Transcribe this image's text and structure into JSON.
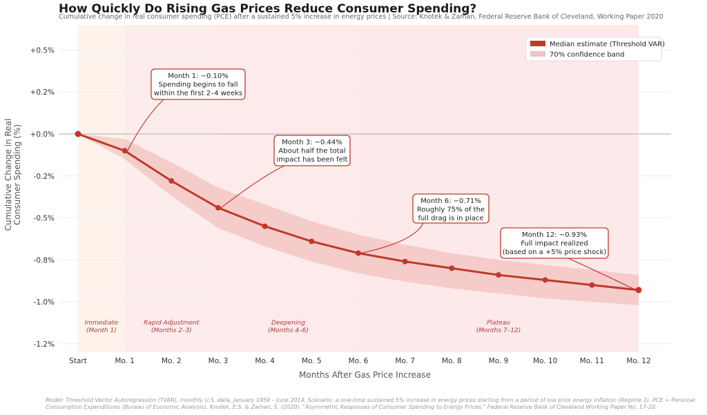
{
  "chart_data": {
    "type": "line",
    "title": "How Quickly Do Rising Gas Prices Reduce Consumer Spending?",
    "subtitle": "Cumulative change in real consumer spending (PCE) after a sustained 5% increase in energy prices  |  Source: Knotek & Zaman, Federal Reserve Bank of Cleveland, Working Paper 2020",
    "xlabel": "Months After Gas Price Increase",
    "ylabel": "Cumulative Change in Real\nConsumer Spending (%)",
    "categories": [
      "Start",
      "Mo. 1",
      "Mo. 2",
      "Mo. 3",
      "Mo. 4",
      "Mo. 5",
      "Mo. 6",
      "Mo. 7",
      "Mo. 8",
      "Mo. 9",
      "Mo. 10",
      "Mo. 11",
      "Mo. 12"
    ],
    "ylim": [
      -1.3,
      0.65
    ],
    "y_ticks": [
      0.5,
      0.25,
      0,
      -0.25,
      -0.5,
      -0.75,
      -1.0,
      -1.25
    ],
    "y_tick_labels": [
      "+0.5%",
      "+0.2%",
      "+0.0%",
      "-0.2%",
      "-0.5%",
      "-0.8%",
      "-1.0%",
      "-1.2%"
    ],
    "grid": true,
    "legend_position": "top-right",
    "series": [
      {
        "name": "Median estimate (Threshold VAR)",
        "color": "#c0392b",
        "values": [
          0,
          -0.1,
          -0.28,
          -0.44,
          -0.55,
          -0.64,
          -0.71,
          -0.76,
          -0.8,
          -0.84,
          -0.87,
          -0.9,
          -0.93
        ]
      },
      {
        "name": "70% confidence band",
        "color": "#f2c4c0",
        "upper": [
          0,
          -0.03,
          -0.17,
          -0.32,
          -0.42,
          -0.52,
          -0.6,
          -0.66,
          -0.71,
          -0.75,
          -0.78,
          -0.81,
          -0.84
        ],
        "lower": [
          0,
          -0.15,
          -0.37,
          -0.56,
          -0.67,
          -0.76,
          -0.83,
          -0.88,
          -0.92,
          -0.95,
          -0.98,
          -1.0,
          -1.02
        ]
      }
    ],
    "phases": [
      {
        "label": "Immediate",
        "sub": "(Month 1)",
        "from": 0,
        "to": 1,
        "color": "#fdf3ea"
      },
      {
        "label": "Rapid Adjustment",
        "sub": "(Months 2–3)",
        "from": 1,
        "to": 3,
        "color": "#fcecec"
      },
      {
        "label": "Deepening",
        "sub": "(Months 4–6)",
        "from": 3,
        "to": 6,
        "color": "#fdeaea"
      },
      {
        "label": "Plateau",
        "sub": "(Months 7–12)",
        "from": 6,
        "to": 12,
        "color": "#fde9e9"
      }
    ],
    "annotations": [
      {
        "target": 1,
        "lines": [
          "Month 1:  −0.10%",
          "Spending begins to fall",
          "within the first 2–4 weeks"
        ]
      },
      {
        "target": 3,
        "lines": [
          "Month 3:  −0.44%",
          "About half the total",
          "impact has been felt"
        ]
      },
      {
        "target": 6,
        "lines": [
          "Month 6:  −0.71%",
          "Roughly 75% of the",
          "full drag is in place"
        ]
      },
      {
        "target": 12,
        "lines": [
          "Month 12:  −0.93%",
          "Full impact realized",
          "(based on a +5% price shock)"
        ]
      }
    ]
  },
  "footnote": "Model: Threshold Vector Autoregression (TVAR), monthly U.S. data, January 1959 – June 2014. Scenario: a one-time sustained 5% increase in energy prices starting from a period of low prior energy inflation (Regime 1). PCE = Personal Consumption Expenditures (Bureau of Economic Analysis). Knotek, E.S. & Zaman, S. (2020). \"Asymmetric Responses of Consumer Spending to Energy Prices.\" Federal Reserve Bank of Cleveland Working Paper No. 17-20."
}
